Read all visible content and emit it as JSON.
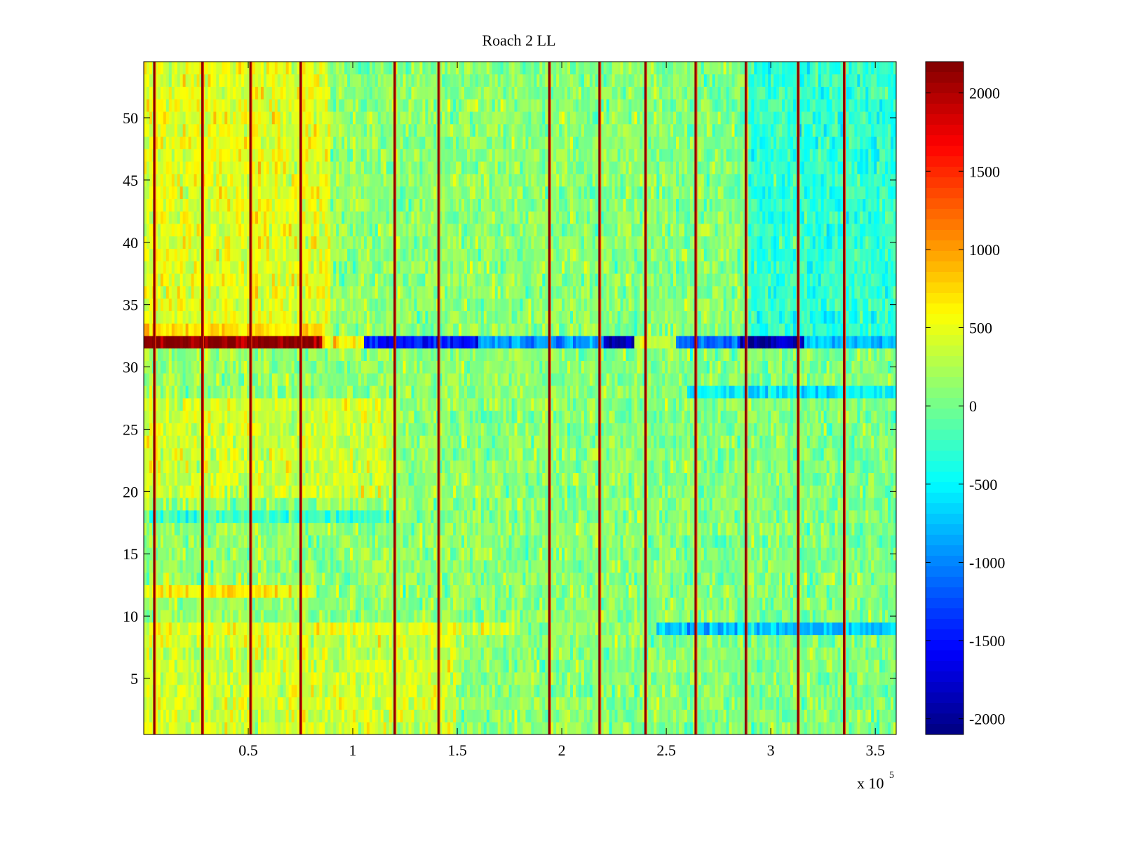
{
  "chart_data": {
    "type": "heatmap",
    "title": "Roach 2 LL",
    "xlabel": "",
    "ylabel": "",
    "x_exponent_label": "x 10",
    "x_exponent": "5",
    "xlim": [
      0,
      3.6
    ],
    "ylim": [
      0.5,
      54.5
    ],
    "rows": 54,
    "grid": false,
    "x_ticks": [
      {
        "value": 0.5,
        "label": "0.5"
      },
      {
        "value": 1,
        "label": "1"
      },
      {
        "value": 1.5,
        "label": "1.5"
      },
      {
        "value": 2,
        "label": "2"
      },
      {
        "value": 2.5,
        "label": "2.5"
      },
      {
        "value": 3,
        "label": "3"
      },
      {
        "value": 3.5,
        "label": "3.5"
      }
    ],
    "y_ticks": [
      {
        "value": 5,
        "label": "5"
      },
      {
        "value": 10,
        "label": "10"
      },
      {
        "value": 15,
        "label": "15"
      },
      {
        "value": 20,
        "label": "20"
      },
      {
        "value": 25,
        "label": "25"
      },
      {
        "value": 30,
        "label": "30"
      },
      {
        "value": 35,
        "label": "35"
      },
      {
        "value": 40,
        "label": "40"
      },
      {
        "value": 45,
        "label": "45"
      },
      {
        "value": 50,
        "label": "50"
      }
    ],
    "colorbar": {
      "colormap": "jet",
      "clim": [
        -2100,
        2200
      ],
      "ticks": [
        {
          "value": 2000,
          "label": "2000"
        },
        {
          "value": 1500,
          "label": "1500"
        },
        {
          "value": 1000,
          "label": "1000"
        },
        {
          "value": 500,
          "label": "500"
        },
        {
          "value": 0,
          "label": "0"
        },
        {
          "value": -500,
          "label": "-500"
        },
        {
          "value": -1000,
          "label": "-1000"
        },
        {
          "value": -1500,
          "label": "-1500"
        },
        {
          "value": -2000,
          "label": "-2000"
        }
      ]
    },
    "vertical_spikes_x": [
      0.05,
      0.28,
      0.51,
      0.75,
      1.2,
      1.41,
      1.94,
      2.18,
      2.4,
      2.64,
      2.88,
      3.13,
      3.35
    ],
    "highlight_row": {
      "row": 32,
      "segments": [
        {
          "x0": 0.0,
          "x1": 0.86,
          "value": 2150
        },
        {
          "x0": 0.86,
          "x1": 1.05,
          "value": 600
        },
        {
          "x0": 1.05,
          "x1": 1.6,
          "value": -1500
        },
        {
          "x0": 1.6,
          "x1": 2.2,
          "value": -900
        },
        {
          "x0": 2.2,
          "x1": 2.35,
          "value": -1950
        },
        {
          "x0": 2.35,
          "x1": 2.55,
          "value": 300
        },
        {
          "x0": 2.55,
          "x1": 2.85,
          "value": -1100
        },
        {
          "x0": 2.85,
          "x1": 3.16,
          "value": -1900
        },
        {
          "x0": 3.16,
          "x1": 3.6,
          "value": -700
        }
      ]
    },
    "row_bias": [
      {
        "rows": [
          1,
          8
        ],
        "x0": 0.0,
        "x1": 1.5,
        "value": 250
      },
      {
        "rows": [
          9,
          9
        ],
        "x0": 0.0,
        "x1": 1.8,
        "value": 350
      },
      {
        "rows": [
          9,
          9
        ],
        "x0": 2.45,
        "x1": 3.6,
        "value": -800
      },
      {
        "rows": [
          12,
          12
        ],
        "x0": 0.0,
        "x1": 0.8,
        "value": 500
      },
      {
        "rows": [
          18,
          18
        ],
        "x0": 0.0,
        "x1": 1.2,
        "value": -400
      },
      {
        "rows": [
          20,
          27
        ],
        "x0": 0.0,
        "x1": 1.2,
        "value": 250
      },
      {
        "rows": [
          28,
          28
        ],
        "x0": 2.6,
        "x1": 3.6,
        "value": -600
      },
      {
        "rows": [
          33,
          54
        ],
        "x0": 0.0,
        "x1": 0.9,
        "value": 350
      },
      {
        "rows": [
          33,
          54
        ],
        "x0": 2.9,
        "x1": 3.6,
        "value": -350
      }
    ]
  }
}
